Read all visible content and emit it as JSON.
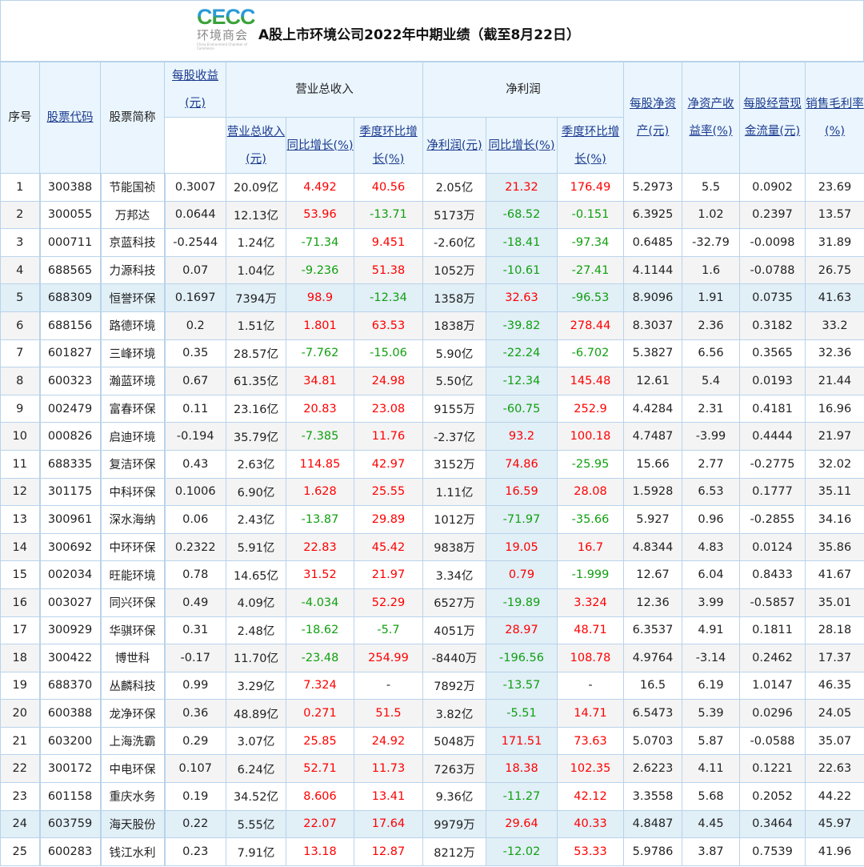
{
  "title": "A股上市环境公司2022年中期业绩（截至8月22日）",
  "logo": {
    "main": "CECC",
    "sub": "环境商会",
    "tiny": "China Environment Chamber of Commerce"
  },
  "colors": {
    "positive": "#ff0000",
    "negative": "#10a010",
    "header_bg": "#eaf5fd",
    "link": "#1a3a8f"
  },
  "headers": {
    "index": "序号",
    "code": "股票代码",
    "name": "股票简称",
    "eps": "每股收益(元)",
    "revenue_group": "营业总收入",
    "revenue": "营业总收入(元)",
    "revenue_yoy": "同比增长(%)",
    "revenue_qoq": "季度环比增长(%)",
    "profit_group": "净利润",
    "profit": "净利润(元)",
    "profit_yoy": "同比增长(%)",
    "profit_qoq": "季度环比增长(%)",
    "bvps": "每股净资产(元)",
    "roe": "净资产收益率(%)",
    "cfps": "每股经营现金流量(元)",
    "gross_margin": "销售毛利率(%)"
  },
  "columns": [
    "index",
    "code",
    "name",
    "eps",
    "revenue",
    "revenue_yoy",
    "revenue_qoq",
    "profit",
    "profit_yoy",
    "profit_qoq",
    "bvps",
    "roe",
    "cfps",
    "gross_margin"
  ],
  "rows": [
    [
      "1",
      "300388",
      "节能国祯",
      "0.3007",
      "20.09亿",
      "4.492",
      "40.56",
      "2.05亿",
      "21.32",
      "176.49",
      "5.2973",
      "5.5",
      "0.0902",
      "23.69"
    ],
    [
      "2",
      "300055",
      "万邦达",
      "0.0644",
      "12.13亿",
      "53.96",
      "-13.71",
      "5173万",
      "-68.52",
      "-0.151",
      "6.3925",
      "1.02",
      "0.2397",
      "13.57"
    ],
    [
      "3",
      "000711",
      "京蓝科技",
      "-0.2544",
      "1.24亿",
      "-71.34",
      "9.451",
      "-2.60亿",
      "-18.41",
      "-97.34",
      "0.6485",
      "-32.79",
      "-0.0098",
      "31.89"
    ],
    [
      "4",
      "688565",
      "力源科技",
      "0.07",
      "1.04亿",
      "-9.236",
      "51.38",
      "1052万",
      "-10.61",
      "-27.41",
      "4.1144",
      "1.6",
      "-0.0788",
      "26.75"
    ],
    [
      "5",
      "688309",
      "恒誉环保",
      "0.1697",
      "7394万",
      "98.9",
      "-12.34",
      "1358万",
      "32.63",
      "-96.53",
      "8.9096",
      "1.91",
      "0.0735",
      "41.63"
    ],
    [
      "6",
      "688156",
      "路德环境",
      "0.2",
      "1.51亿",
      "1.801",
      "63.53",
      "1838万",
      "-39.82",
      "278.44",
      "8.3037",
      "2.36",
      "0.3182",
      "33.2"
    ],
    [
      "7",
      "601827",
      "三峰环境",
      "0.35",
      "28.57亿",
      "-7.762",
      "-15.06",
      "5.90亿",
      "-22.24",
      "-6.702",
      "5.3827",
      "6.56",
      "0.3565",
      "32.36"
    ],
    [
      "8",
      "600323",
      "瀚蓝环境",
      "0.67",
      "61.35亿",
      "34.81",
      "24.98",
      "5.50亿",
      "-12.34",
      "145.48",
      "12.61",
      "5.4",
      "0.0193",
      "21.44"
    ],
    [
      "9",
      "002479",
      "富春环保",
      "0.11",
      "23.16亿",
      "20.83",
      "23.08",
      "9155万",
      "-60.75",
      "252.9",
      "4.4284",
      "2.31",
      "0.4181",
      "16.96"
    ],
    [
      "10",
      "000826",
      "启迪环境",
      "-0.194",
      "35.79亿",
      "-7.385",
      "11.76",
      "-2.37亿",
      "93.2",
      "100.18",
      "4.7487",
      "-3.99",
      "0.4444",
      "21.97"
    ],
    [
      "11",
      "688335",
      "复洁环保",
      "0.43",
      "2.63亿",
      "114.85",
      "42.97",
      "3152万",
      "74.86",
      "-25.95",
      "15.66",
      "2.77",
      "-0.2775",
      "32.02"
    ],
    [
      "12",
      "301175",
      "中科环保",
      "0.1006",
      "6.90亿",
      "1.628",
      "25.55",
      "1.11亿",
      "16.59",
      "28.08",
      "1.5928",
      "6.53",
      "0.1777",
      "35.11"
    ],
    [
      "13",
      "300961",
      "深水海纳",
      "0.06",
      "2.43亿",
      "-13.87",
      "29.89",
      "1012万",
      "-71.97",
      "-35.66",
      "5.927",
      "0.96",
      "-0.2855",
      "34.16"
    ],
    [
      "14",
      "300692",
      "中环环保",
      "0.2322",
      "5.91亿",
      "22.83",
      "45.42",
      "9838万",
      "19.05",
      "16.7",
      "4.8344",
      "4.83",
      "0.0124",
      "35.86"
    ],
    [
      "15",
      "002034",
      "旺能环境",
      "0.78",
      "14.65亿",
      "31.52",
      "21.97",
      "3.34亿",
      "0.79",
      "-1.999",
      "12.67",
      "6.04",
      "0.8433",
      "41.67"
    ],
    [
      "16",
      "003027",
      "同兴环保",
      "0.49",
      "4.09亿",
      "-4.034",
      "52.29",
      "6527万",
      "-19.89",
      "3.324",
      "12.36",
      "3.99",
      "-0.5857",
      "35.01"
    ],
    [
      "17",
      "300929",
      "华骐环保",
      "0.31",
      "2.48亿",
      "-18.62",
      "-5.7",
      "4051万",
      "28.97",
      "48.71",
      "6.3537",
      "4.91",
      "0.1811",
      "28.18"
    ],
    [
      "18",
      "300422",
      "博世科",
      "-0.17",
      "11.70亿",
      "-23.48",
      "254.99",
      "-8440万",
      "-196.56",
      "108.78",
      "4.9764",
      "-3.14",
      "0.2462",
      "17.37"
    ],
    [
      "19",
      "688370",
      "丛麟科技",
      "0.99",
      "3.29亿",
      "7.324",
      "-",
      "7892万",
      "-13.57",
      "-",
      "16.5",
      "6.19",
      "1.0147",
      "46.35"
    ],
    [
      "20",
      "600388",
      "龙净环保",
      "0.36",
      "48.89亿",
      "0.271",
      "51.5",
      "3.82亿",
      "-5.51",
      "14.71",
      "6.5473",
      "5.39",
      "0.0296",
      "24.05"
    ],
    [
      "21",
      "603200",
      "上海洗霸",
      "0.29",
      "3.07亿",
      "25.85",
      "24.92",
      "5048万",
      "171.51",
      "73.63",
      "5.0703",
      "5.87",
      "-0.0588",
      "35.07"
    ],
    [
      "22",
      "300172",
      "中电环保",
      "0.107",
      "6.24亿",
      "52.71",
      "11.73",
      "7263万",
      "18.38",
      "102.35",
      "2.6223",
      "4.11",
      "0.1221",
      "22.63"
    ],
    [
      "23",
      "601158",
      "重庆水务",
      "0.19",
      "34.52亿",
      "8.606",
      "13.41",
      "9.36亿",
      "-11.27",
      "42.12",
      "3.3558",
      "5.68",
      "0.2052",
      "44.22"
    ],
    [
      "24",
      "603759",
      "海天股份",
      "0.22",
      "5.55亿",
      "22.07",
      "17.64",
      "9979万",
      "29.64",
      "40.33",
      "4.8487",
      "4.45",
      "0.3464",
      "45.97"
    ],
    [
      "25",
      "600283",
      "钱江水利",
      "0.23",
      "7.91亿",
      "13.18",
      "12.87",
      "8212万",
      "-12.02",
      "53.33",
      "5.9786",
      "3.87",
      "0.7539",
      "41.96"
    ]
  ]
}
